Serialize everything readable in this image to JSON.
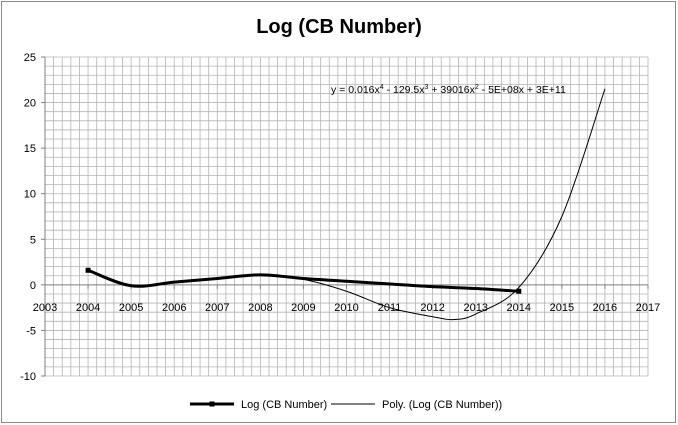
{
  "chart_data": {
    "type": "line",
    "title": "Log (CB Number)",
    "xlabel": "",
    "ylabel": "",
    "xlim": [
      2003,
      2017
    ],
    "ylim": [
      -10,
      25
    ],
    "x_ticks": [
      2003,
      2004,
      2005,
      2006,
      2007,
      2008,
      2009,
      2010,
      2011,
      2012,
      2013,
      2014,
      2015,
      2016,
      2017
    ],
    "y_ticks": [
      -10,
      -5,
      0,
      5,
      10,
      15,
      20,
      25
    ],
    "grid": true,
    "legend_position": "bottom",
    "series": [
      {
        "name": "Log (CB Number)",
        "color": "#000000",
        "style": "thick-line-with-markers",
        "x": [
          2004,
          2005,
          2006,
          2007,
          2008,
          2009,
          2010,
          2011,
          2012,
          2013,
          2014
        ],
        "y": [
          1.6,
          -0.1,
          0.3,
          0.7,
          1.1,
          0.7,
          0.4,
          0.1,
          -0.2,
          -0.4,
          -0.7
        ]
      },
      {
        "name": "Poly. (Log (CB Number))",
        "color": "#000000",
        "style": "thin-trendline",
        "x": [
          2004,
          2005,
          2006,
          2007,
          2008,
          2009,
          2010,
          2011,
          2012,
          2012.5,
          2013,
          2014,
          2015,
          2016
        ],
        "y": [
          1.6,
          0.0,
          0.3,
          0.7,
          1.1,
          0.6,
          -0.7,
          -2.5,
          -3.5,
          -3.8,
          -3.2,
          -0.3,
          7.5,
          21.5
        ]
      }
    ],
    "annotation": {
      "prefix": "y = 0.016x",
      "sup1": "4",
      "mid1": " - 129.5x",
      "sup2": "3",
      "mid2": " + 39016x",
      "sup3": "2",
      "suffix": " - 5E+08x + 3E+11"
    }
  }
}
